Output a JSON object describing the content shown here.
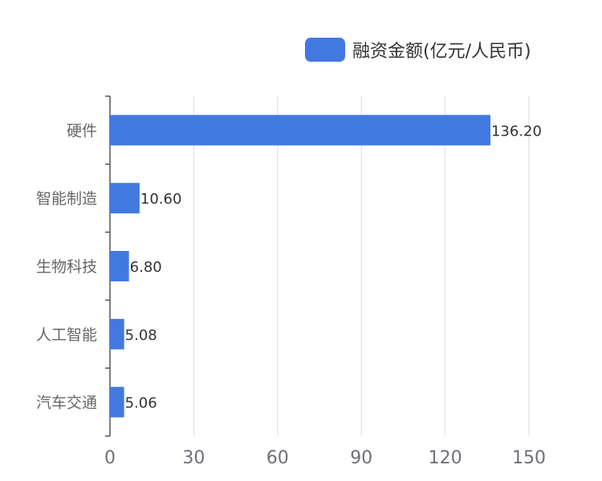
{
  "chart_data": {
    "type": "bar",
    "orientation": "horizontal",
    "categories": [
      "硬件",
      "智能制造",
      "生物科技",
      "人工智能",
      "汽车交通"
    ],
    "series": [
      {
        "name": "融资金额(亿元/人民币)",
        "values": [
          136.2,
          10.6,
          6.8,
          5.08,
          5.06
        ],
        "value_labels": [
          "136.20",
          "10.60",
          "6.80",
          "5.08",
          "5.06"
        ]
      }
    ],
    "xlim": [
      0,
      150
    ],
    "xticks": [
      "0",
      "30",
      "60",
      "90",
      "120",
      "150"
    ],
    "grid": true,
    "legend_position": "top-right",
    "colors": {
      "bar": "#4179e0",
      "grid": "#dfe8ee",
      "axis": "#555555",
      "tick_label": "#6e7079",
      "category_label": "#666666",
      "value_label": "#333333"
    }
  }
}
